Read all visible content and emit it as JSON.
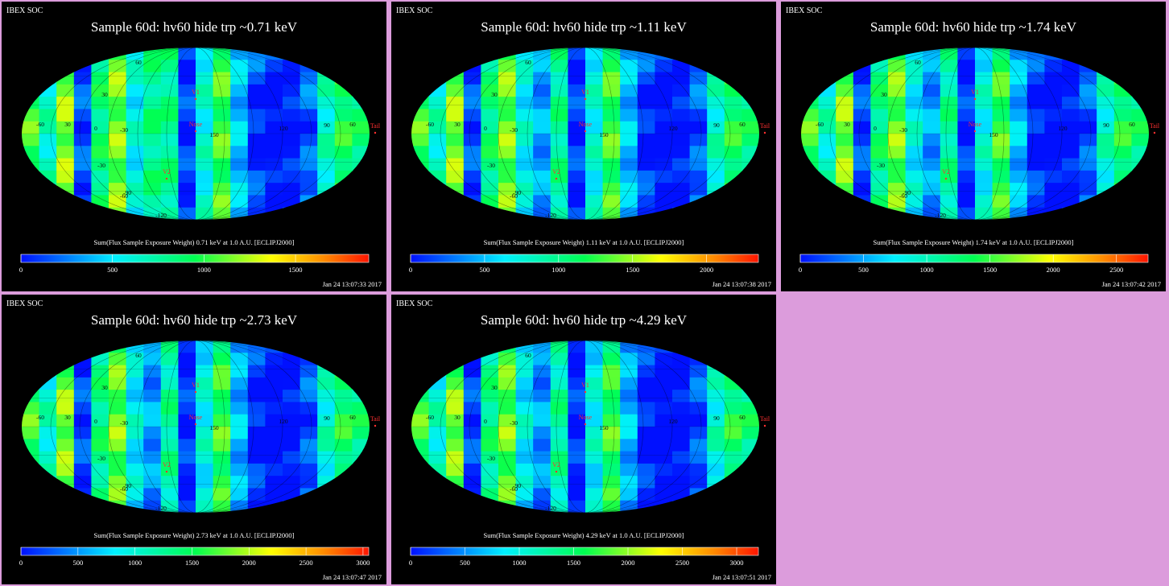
{
  "chart_data": [
    {
      "type": "heatmap",
      "header": "IBEX SOC",
      "title": "Sample 60d: hv60 hide trp ~0.71 keV",
      "colorbar_label": "Sum(Flux Sample Exposure Weight)  0.71 keV at 1.0 A.U. [ECLIPJ2000]",
      "colorbar_ticks": [
        "0",
        "500",
        "1000",
        "1500"
      ],
      "colorbar_range": [
        0,
        1900
      ],
      "timestamp": "Jan 24 13:07:33 2017",
      "map_labels": [
        "60",
        "30",
        "0",
        "-30",
        "-60",
        "-90",
        "-120",
        "150",
        "120",
        "90",
        "60",
        "30",
        "-30",
        "-60",
        "V1",
        "Nose",
        "V2",
        "Tail"
      ],
      "projection": "mollweide",
      "colormap": "rainbow"
    },
    {
      "type": "heatmap",
      "header": "IBEX SOC",
      "title": "Sample 60d: hv60 hide trp ~1.11 keV",
      "colorbar_label": "Sum(Flux Sample Exposure Weight)  1.11 keV at 1.0 A.U. [ECLIPJ2000]",
      "colorbar_ticks": [
        "0",
        "500",
        "1000",
        "1500",
        "2000"
      ],
      "colorbar_range": [
        0,
        2350
      ],
      "timestamp": "Jan 24 13:07:38 2017",
      "map_labels": [
        "60",
        "30",
        "0",
        "-30",
        "-60",
        "-90",
        "-120",
        "150",
        "120",
        "90",
        "60",
        "30",
        "-30",
        "-60",
        "V1",
        "Nose",
        "V2",
        "Tail"
      ],
      "projection": "mollweide",
      "colormap": "rainbow"
    },
    {
      "type": "heatmap",
      "header": "IBEX SOC",
      "title": "Sample 60d: hv60 hide trp ~1.74 keV",
      "colorbar_label": "Sum(Flux Sample Exposure Weight)  1.74 keV at 1.0 A.U. [ECLIPJ2000]",
      "colorbar_ticks": [
        "0",
        "500",
        "1000",
        "1500",
        "2000",
        "2500"
      ],
      "colorbar_range": [
        0,
        2750
      ],
      "timestamp": "Jan 24 13:07:42 2017",
      "map_labels": [
        "60",
        "30",
        "0",
        "-30",
        "-60",
        "-90",
        "-120",
        "150",
        "120",
        "90",
        "60",
        "30",
        "-30",
        "-60",
        "V1",
        "Nose",
        "V2",
        "Tail"
      ],
      "projection": "mollweide",
      "colormap": "rainbow"
    },
    {
      "type": "heatmap",
      "header": "IBEX SOC",
      "title": "Sample 60d: hv60 hide trp ~2.73 keV",
      "colorbar_label": "Sum(Flux Sample Exposure Weight)  2.73 keV at 1.0 A.U. [ECLIPJ2000]",
      "colorbar_ticks": [
        "0",
        "500",
        "1000",
        "1500",
        "2000",
        "2500",
        "3000"
      ],
      "colorbar_range": [
        0,
        3050
      ],
      "timestamp": "Jan 24 13:07:47 2017",
      "map_labels": [
        "60",
        "30",
        "0",
        "-30",
        "-60",
        "-90",
        "-120",
        "150",
        "120",
        "90",
        "60",
        "30",
        "-30",
        "-60",
        "V1",
        "Nose",
        "V2",
        "Tail"
      ],
      "projection": "mollweide",
      "colormap": "rainbow"
    },
    {
      "type": "heatmap",
      "header": "IBEX SOC",
      "title": "Sample 60d: hv60 hide trp ~4.29 keV",
      "colorbar_label": "Sum(Flux Sample Exposure Weight)  4.29 keV at 1.0 A.U. [ECLIPJ2000]",
      "colorbar_ticks": [
        "0",
        "500",
        "1000",
        "1500",
        "2000",
        "2500",
        "3000"
      ],
      "colorbar_range": [
        0,
        3200
      ],
      "timestamp": "Jan 24 13:07:51 2017",
      "map_labels": [
        "60",
        "30",
        "0",
        "-30",
        "-60",
        "-90",
        "-120",
        "150",
        "120",
        "90",
        "60",
        "30",
        "-30",
        "-60",
        "V1",
        "Nose",
        "V2",
        "Tail"
      ],
      "projection": "mollweide",
      "colormap": "rainbow"
    }
  ],
  "colors": {
    "background": "#dc9cdc",
    "panel_bg": "#000000",
    "marker": "#ff3030",
    "text": "#ffffff"
  }
}
